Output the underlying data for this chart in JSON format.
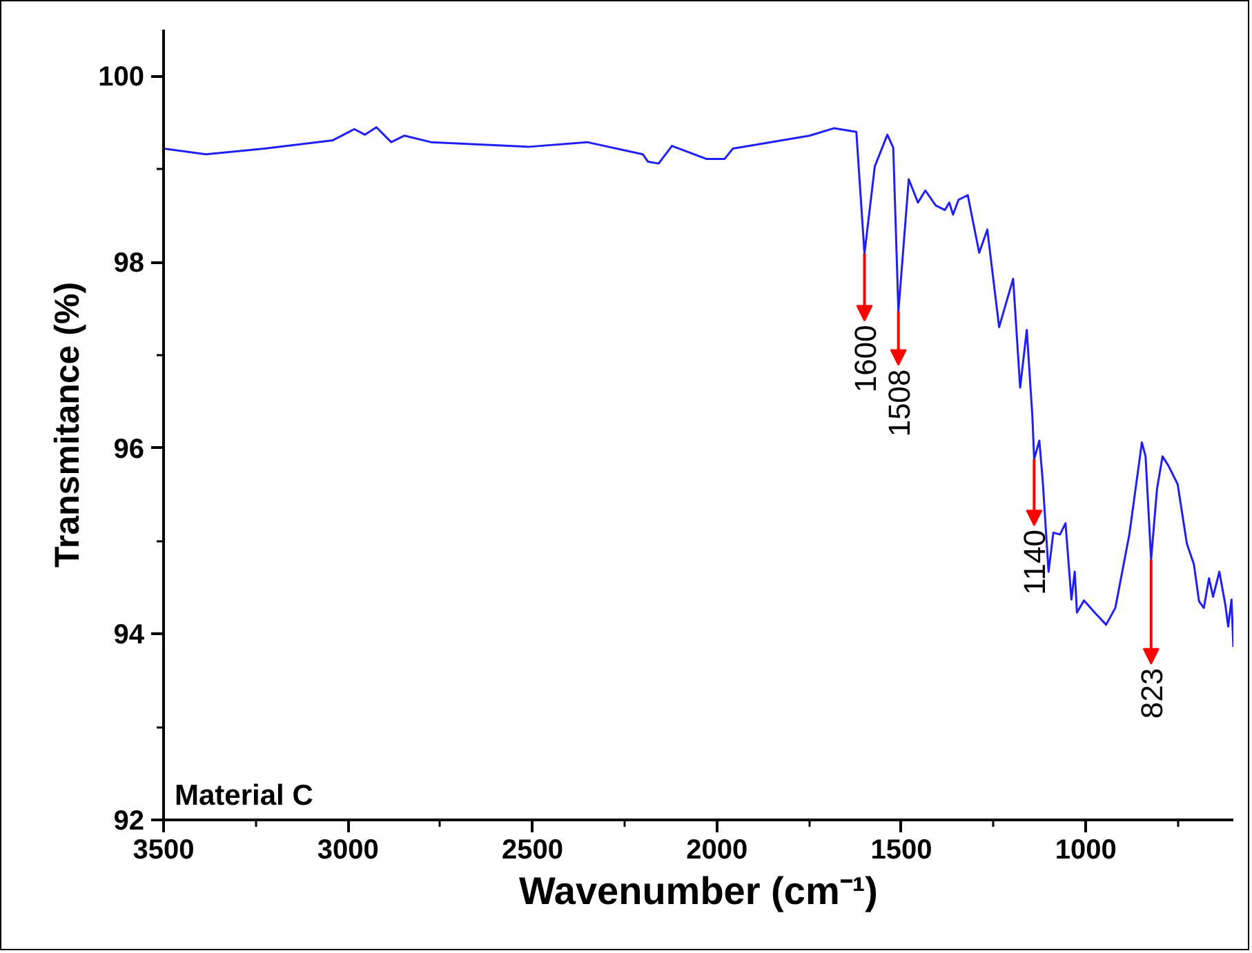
{
  "chart_data": {
    "type": "line",
    "xlabel": "Wavenumber (cm⁻¹)",
    "ylabel": "Transmitance (%)",
    "xlim": [
      3500,
      600
    ],
    "ylim": [
      92,
      100.5
    ],
    "xticks": [
      3500,
      {
        "value": 3250,
        "label": null
      },
      3000,
      {
        "value": 2750,
        "label": null
      },
      2500,
      {
        "value": 2250,
        "label": null
      },
      2000,
      {
        "value": 1750,
        "label": null
      },
      1500,
      {
        "value": 1250,
        "label": null
      },
      1000,
      {
        "value": 750,
        "label": null
      }
    ],
    "yticks": [
      92,
      {
        "value": 93,
        "label": null
      },
      94,
      {
        "value": 95,
        "label": null
      },
      96,
      {
        "value": 97,
        "label": null
      },
      98,
      {
        "value": 99,
        "label": null
      },
      100
    ],
    "grid": false,
    "series": [
      {
        "color": "#1f1ff5",
        "x": [
          3500,
          3385,
          3227,
          3041,
          2983,
          2954,
          2923,
          2883,
          2847,
          2775,
          2510,
          2352,
          2201,
          2187,
          2158,
          2122,
          2029,
          1979,
          1957,
          1749,
          1682,
          1622,
          1600,
          1572,
          1538,
          1522,
          1508,
          1480,
          1455,
          1435,
          1407,
          1382,
          1370,
          1360,
          1345,
          1320,
          1289,
          1267,
          1235,
          1197,
          1178,
          1160,
          1145,
          1140,
          1126,
          1117,
          1101,
          1088,
          1070,
          1055,
          1039,
          1030,
          1024,
          1005,
          976,
          945,
          920,
          882,
          848,
          838,
          823,
          807,
          792,
          776,
          751,
          726,
          707,
          693,
          680,
          666,
          655,
          638,
          622,
          614,
          605,
          600
        ],
        "values": [
          99.22,
          99.16,
          99.22,
          99.31,
          99.43,
          99.37,
          99.45,
          99.29,
          99.36,
          99.29,
          99.24,
          99.29,
          99.16,
          99.08,
          99.06,
          99.25,
          99.11,
          99.11,
          99.22,
          99.36,
          99.44,
          99.4,
          98.09,
          99.03,
          99.37,
          99.23,
          97.47,
          98.89,
          98.64,
          98.77,
          98.61,
          98.56,
          98.64,
          98.51,
          98.67,
          98.72,
          98.1,
          98.35,
          97.3,
          97.82,
          96.65,
          97.27,
          96.35,
          95.88,
          96.08,
          95.66,
          94.67,
          95.09,
          95.07,
          95.19,
          94.37,
          94.67,
          94.23,
          94.36,
          94.23,
          94.1,
          94.28,
          95.07,
          96.06,
          95.91,
          94.8,
          95.56,
          95.91,
          95.81,
          95.61,
          94.97,
          94.75,
          94.35,
          94.28,
          94.6,
          94.4,
          94.67,
          94.32,
          94.08,
          94.37,
          93.86
        ]
      }
    ],
    "annotations": [
      {
        "text": "1600",
        "x": 1600,
        "y": 98.09
      },
      {
        "text": "1508",
        "x": 1508,
        "y": 97.47
      },
      {
        "text": "1140",
        "x": 1140,
        "y": 95.88
      },
      {
        "text": "823",
        "x": 823,
        "y": 94.8
      },
      "Material C"
    ]
  }
}
